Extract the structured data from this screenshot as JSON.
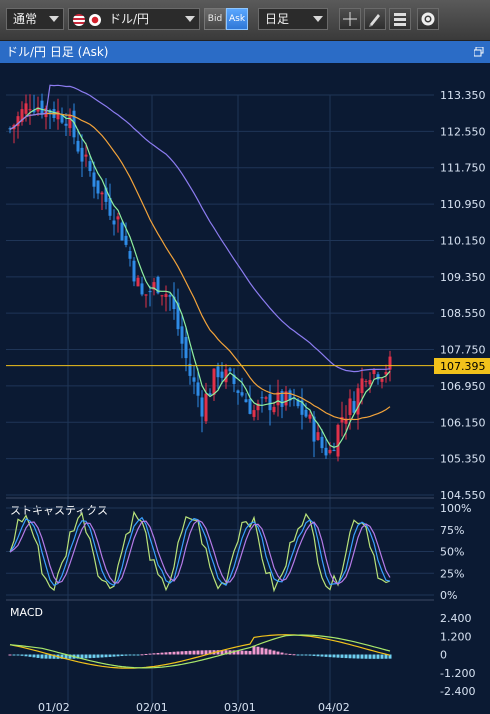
{
  "toolbar": {
    "chart_mode": "通常",
    "pair": "ドル/円",
    "bid_label": "Bid",
    "ask_label": "Ask",
    "timeframe": "日足"
  },
  "window": {
    "title": "ドル/円 日足 (Ask)"
  },
  "price_axis": {
    "ticks": [
      "113.350",
      "112.550",
      "111.750",
      "110.950",
      "110.150",
      "109.350",
      "108.550",
      "107.750",
      "106.950",
      "106.150",
      "105.350",
      "104.550"
    ],
    "current": "107.395"
  },
  "stochastics": {
    "label": "ストキャスティクス",
    "ticks": [
      "100%",
      "75%",
      "50%",
      "25%",
      "0%"
    ]
  },
  "macd": {
    "label": "MACD",
    "ticks": [
      "2.400",
      "1.200",
      "0",
      "-1.200",
      "-2.400"
    ]
  },
  "date_axis": [
    "01/02",
    "02/01",
    "03/01",
    "04/02"
  ],
  "colors": {
    "bg": "#0b1a33",
    "up": "#e0314a",
    "down": "#2e8be6",
    "ma_short": "#8ff0a0",
    "ma_mid": "#f2a33b",
    "ma_long": "#8c7cf0",
    "current_line": "#f2c21b"
  },
  "chart_data": {
    "type": "candlestick",
    "price_range": [
      104.55,
      113.35
    ],
    "current_price": 107.395,
    "approx_close_path": [
      {
        "date": "01/02",
        "close": 112.9
      },
      {
        "date": "02/01",
        "close": 108.7
      },
      {
        "date": "03/01",
        "close": 106.3
      },
      {
        "date": "04/02",
        "close": 107.4
      }
    ]
  }
}
